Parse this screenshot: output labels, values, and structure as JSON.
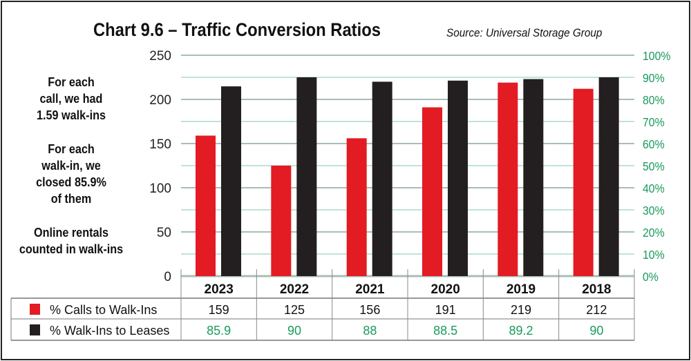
{
  "chart_data": {
    "type": "bar",
    "title": "Chart 9.6 – Traffic Conversion Ratios",
    "source": "Source: Universal Storage Group",
    "categories": [
      "2023",
      "2022",
      "2021",
      "2020",
      "2019",
      "2018"
    ],
    "series": [
      {
        "name": "% Calls to Walk-Ins",
        "axis": "left",
        "color": "#e31b23",
        "values": [
          159,
          125,
          156,
          191,
          219,
          212
        ]
      },
      {
        "name": "% Walk-Ins to Leases",
        "axis": "right",
        "color": "#231f20",
        "values": [
          85.9,
          90,
          88,
          88.5,
          89.2,
          90
        ]
      }
    ],
    "left_axis": {
      "ylim": [
        0,
        250
      ],
      "ticks": [
        "0",
        "50",
        "100",
        "150",
        "200",
        "250"
      ]
    },
    "right_axis": {
      "ylim": [
        0,
        100
      ],
      "ticks": [
        "0%",
        "10%",
        "20%",
        "30%",
        "40%",
        "50%",
        "60%",
        "70%",
        "80%",
        "90%",
        "100%"
      ],
      "color": "#1a9a5c"
    },
    "grid": true,
    "legend": "data-table"
  },
  "notes": [
    [
      "For each",
      "call, we had",
      "1.59 walk-ins"
    ],
    [
      "For each",
      "walk-in, we",
      "closed 85.9%",
      "of them"
    ],
    [
      "Online rentals",
      "counted in walk-ins"
    ]
  ]
}
